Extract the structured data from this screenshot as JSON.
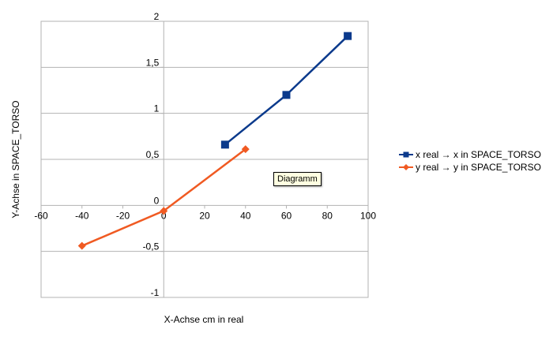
{
  "chart_data": {
    "type": "line",
    "xlabel": "X-Achse cm in real",
    "ylabel": "Y-Achse in SPACE_TORSO",
    "xlim": [
      -60,
      100
    ],
    "ylim": [
      -1,
      2
    ],
    "x_ticks": [
      -60,
      -40,
      -20,
      0,
      20,
      40,
      60,
      80,
      100
    ],
    "y_ticks": [
      -1,
      -0.5,
      0,
      0.5,
      1,
      1.5,
      2
    ],
    "x_tick_labels": [
      "-60",
      "-40",
      "-20",
      "0",
      "20",
      "40",
      "60",
      "80",
      "100"
    ],
    "y_tick_labels": [
      "-1",
      "-0,5",
      "0",
      "0,5",
      "1",
      "1,5",
      "2"
    ],
    "grid": "horizontal",
    "legend_position": "right",
    "series": [
      {
        "name": "x real → x in SPACE_TORSO",
        "color": "#0b3a8c",
        "marker": "square",
        "x": [
          30,
          60,
          90
        ],
        "y": [
          0.66,
          1.2,
          1.84
        ]
      },
      {
        "name": "y real → y in SPACE_TORSO",
        "color": "#f05a22",
        "marker": "diamond",
        "x": [
          -40,
          0,
          40
        ],
        "y": [
          -0.44,
          -0.06,
          0.61
        ]
      }
    ]
  },
  "tooltip": {
    "text": "Diagramm"
  }
}
